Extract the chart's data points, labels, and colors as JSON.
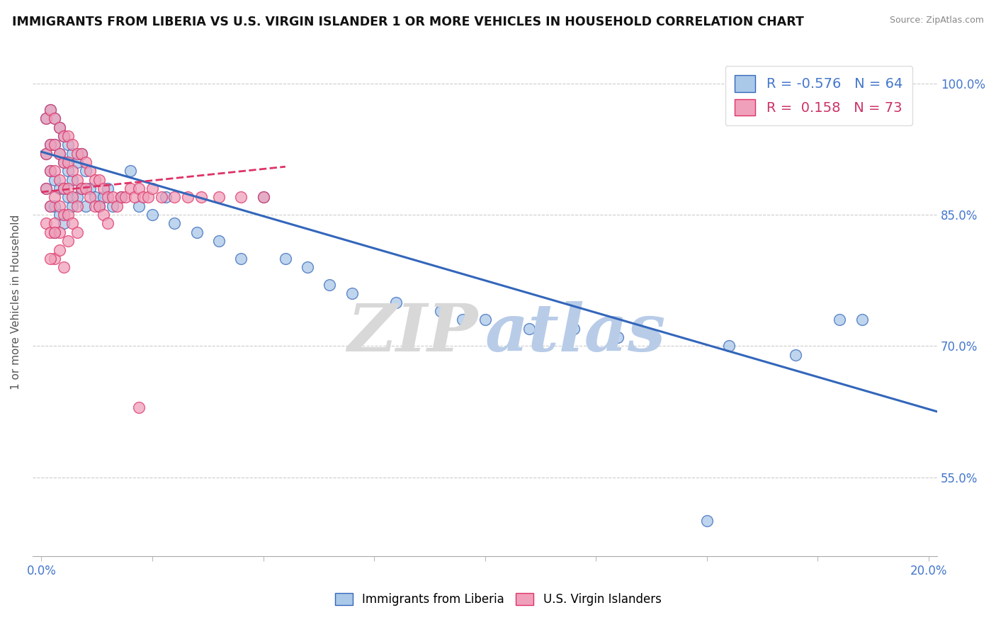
{
  "title": "IMMIGRANTS FROM LIBERIA VS U.S. VIRGIN ISLANDER 1 OR MORE VEHICLES IN HOUSEHOLD CORRELATION CHART",
  "source": "Source: ZipAtlas.com",
  "ylabel": "1 or more Vehicles in Household",
  "xlim": [
    -0.002,
    0.202
  ],
  "ylim": [
    0.46,
    1.04
  ],
  "yticks": [
    0.55,
    0.7,
    0.85,
    1.0
  ],
  "ytick_labels": [
    "55.0%",
    "70.0%",
    "85.0%",
    "100.0%"
  ],
  "xtick_positions": [
    0.0,
    0.025,
    0.05,
    0.075,
    0.1,
    0.125,
    0.15,
    0.175,
    0.2
  ],
  "xtick_labels": [
    "0.0%",
    "",
    "",
    "",
    "",
    "",
    "",
    "",
    "20.0%"
  ],
  "blue_r": -0.576,
  "blue_n": 64,
  "pink_r": 0.158,
  "pink_n": 73,
  "blue_color": "#aac8e8",
  "pink_color": "#f0a0ba",
  "blue_line_color": "#3366bb",
  "pink_line_color": "#dd3366",
  "blue_line_x0": 0.0,
  "blue_line_y0": 0.922,
  "blue_line_x1": 0.202,
  "blue_line_y1": 0.625,
  "pink_line_x0": 0.0,
  "pink_line_y0": 0.876,
  "pink_line_x1": 0.055,
  "pink_line_y1": 0.905,
  "legend_blue_label": "Immigrants from Liberia",
  "legend_pink_label": "U.S. Virgin Islanders",
  "blue_scatter_x": [
    0.001,
    0.001,
    0.001,
    0.002,
    0.002,
    0.002,
    0.002,
    0.003,
    0.003,
    0.003,
    0.003,
    0.003,
    0.004,
    0.004,
    0.004,
    0.004,
    0.005,
    0.005,
    0.005,
    0.005,
    0.006,
    0.006,
    0.006,
    0.007,
    0.007,
    0.007,
    0.008,
    0.008,
    0.009,
    0.009,
    0.01,
    0.01,
    0.011,
    0.012,
    0.013,
    0.014,
    0.015,
    0.016,
    0.018,
    0.02,
    0.022,
    0.025,
    0.028,
    0.03,
    0.035,
    0.04,
    0.045,
    0.05,
    0.055,
    0.06,
    0.065,
    0.07,
    0.08,
    0.09,
    0.1,
    0.11,
    0.13,
    0.155,
    0.17,
    0.185,
    0.095,
    0.12,
    0.15,
    0.18
  ],
  "blue_scatter_y": [
    0.96,
    0.92,
    0.88,
    0.97,
    0.93,
    0.9,
    0.86,
    0.96,
    0.93,
    0.89,
    0.86,
    0.83,
    0.95,
    0.92,
    0.88,
    0.85,
    0.94,
    0.91,
    0.88,
    0.84,
    0.93,
    0.9,
    0.87,
    0.92,
    0.89,
    0.86,
    0.91,
    0.87,
    0.92,
    0.88,
    0.9,
    0.86,
    0.88,
    0.87,
    0.86,
    0.87,
    0.88,
    0.86,
    0.87,
    0.9,
    0.86,
    0.85,
    0.87,
    0.84,
    0.83,
    0.82,
    0.8,
    0.87,
    0.8,
    0.79,
    0.77,
    0.76,
    0.75,
    0.74,
    0.73,
    0.72,
    0.71,
    0.7,
    0.69,
    0.73,
    0.73,
    0.72,
    0.5,
    0.73
  ],
  "pink_scatter_x": [
    0.001,
    0.001,
    0.001,
    0.001,
    0.002,
    0.002,
    0.002,
    0.002,
    0.002,
    0.003,
    0.003,
    0.003,
    0.003,
    0.003,
    0.003,
    0.004,
    0.004,
    0.004,
    0.004,
    0.004,
    0.005,
    0.005,
    0.005,
    0.005,
    0.006,
    0.006,
    0.006,
    0.006,
    0.007,
    0.007,
    0.007,
    0.008,
    0.008,
    0.008,
    0.009,
    0.009,
    0.01,
    0.01,
    0.011,
    0.011,
    0.012,
    0.012,
    0.013,
    0.013,
    0.014,
    0.014,
    0.015,
    0.015,
    0.016,
    0.017,
    0.018,
    0.019,
    0.02,
    0.021,
    0.022,
    0.023,
    0.024,
    0.025,
    0.027,
    0.03,
    0.033,
    0.036,
    0.04,
    0.045,
    0.05,
    0.002,
    0.003,
    0.004,
    0.005,
    0.006,
    0.022,
    0.007,
    0.008
  ],
  "pink_scatter_y": [
    0.96,
    0.92,
    0.88,
    0.84,
    0.97,
    0.93,
    0.9,
    0.86,
    0.83,
    0.96,
    0.93,
    0.9,
    0.87,
    0.84,
    0.8,
    0.95,
    0.92,
    0.89,
    0.86,
    0.83,
    0.94,
    0.91,
    0.88,
    0.85,
    0.94,
    0.91,
    0.88,
    0.85,
    0.93,
    0.9,
    0.87,
    0.92,
    0.89,
    0.86,
    0.92,
    0.88,
    0.91,
    0.88,
    0.9,
    0.87,
    0.89,
    0.86,
    0.89,
    0.86,
    0.88,
    0.85,
    0.87,
    0.84,
    0.87,
    0.86,
    0.87,
    0.87,
    0.88,
    0.87,
    0.88,
    0.87,
    0.87,
    0.88,
    0.87,
    0.87,
    0.87,
    0.87,
    0.87,
    0.87,
    0.87,
    0.8,
    0.83,
    0.81,
    0.79,
    0.82,
    0.63,
    0.84,
    0.83
  ]
}
